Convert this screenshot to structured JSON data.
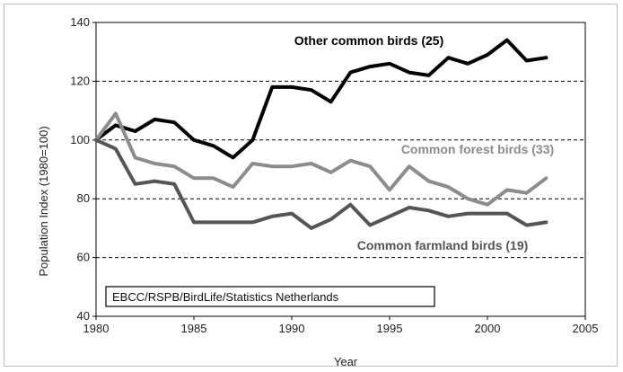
{
  "chart_data": {
    "type": "line",
    "xlabel": "Year",
    "ylabel": "Population Index (1980=100)",
    "xlim": [
      1980,
      2005
    ],
    "ylim": [
      40,
      140
    ],
    "x_ticks": [
      "1980",
      "1985",
      "1990",
      "1995",
      "2000",
      "2005"
    ],
    "y_ticks": [
      "40",
      "60",
      "80",
      "100",
      "120",
      "140"
    ],
    "grid": "horizontal dashed",
    "source_note": "EBCC/RSPB/BirdLife/Statistics Netherlands",
    "series": [
      {
        "name": "Other common birds (25)",
        "color": "#000000",
        "x": [
          1980,
          1981,
          1982,
          1983,
          1984,
          1985,
          1986,
          1987,
          1988,
          1989,
          1990,
          1991,
          1992,
          1993,
          1994,
          1995,
          1996,
          1997,
          1998,
          1999,
          2000,
          2001,
          2002,
          2003
        ],
        "y": [
          100,
          105,
          103,
          107,
          106,
          100,
          98,
          94,
          100,
          118,
          118,
          117,
          113,
          123,
          125,
          126,
          123,
          122,
          128,
          126,
          129,
          134,
          127,
          128
        ]
      },
      {
        "name": "Common forest birds (33)",
        "color": "#8c8c8c",
        "x": [
          1980,
          1981,
          1982,
          1983,
          1984,
          1985,
          1986,
          1987,
          1988,
          1989,
          1990,
          1991,
          1992,
          1993,
          1994,
          1995,
          1996,
          1997,
          1998,
          1999,
          2000,
          2001,
          2002,
          2003
        ],
        "y": [
          100,
          109,
          94,
          92,
          91,
          87,
          87,
          84,
          92,
          91,
          91,
          92,
          89,
          93,
          91,
          83,
          91,
          86,
          84,
          80,
          78,
          83,
          82,
          87
        ]
      },
      {
        "name": "Common farmland birds (19)",
        "color": "#555555",
        "x": [
          1980,
          1981,
          1982,
          1983,
          1984,
          1985,
          1986,
          1987,
          1988,
          1989,
          1990,
          1991,
          1992,
          1993,
          1994,
          1995,
          1996,
          1997,
          1998,
          1999,
          2000,
          2001,
          2002,
          2003
        ],
        "y": [
          100,
          97,
          85,
          86,
          85,
          72,
          72,
          72,
          72,
          74,
          75,
          70,
          73,
          78,
          71,
          74,
          77,
          76,
          74,
          75,
          75,
          75,
          71,
          72
        ]
      }
    ]
  }
}
